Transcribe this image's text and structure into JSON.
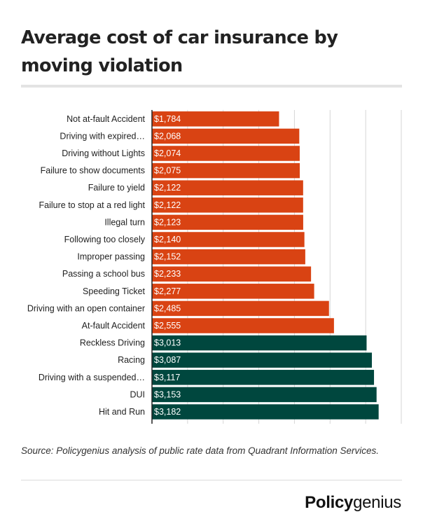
{
  "title": "Average cost of car insurance by moving violation",
  "source_note": "Source: Policygenius analysis of public rate data from Quadrant Information Services.",
  "brand": {
    "part1": "Policy",
    "part2": "genius"
  },
  "colors": {
    "orange": "#d94313",
    "teal": "#00473e",
    "text": "#222222",
    "grid": "#d6d6d6",
    "axis": "#222222"
  },
  "chart_data": {
    "type": "bar",
    "orientation": "horizontal",
    "title": "Average cost of car insurance by moving violation",
    "xlabel": "",
    "ylabel": "",
    "xlim": [
      0,
      3500
    ],
    "grid": true,
    "value_prefix": "$",
    "categories": [
      "Not at-fault Accident",
      "Driving with expired…",
      "Driving without Lights",
      "Failure to show documents",
      "Failure to yield",
      "Failure to stop at a red light",
      "Illegal turn",
      "Following too closely",
      "Improper passing",
      "Passing a school bus",
      "Speeding Ticket",
      "Driving with an open container",
      "At-fault Accident",
      "Reckless Driving",
      "Racing",
      "Driving with a suspended…",
      "DUI",
      "Hit and Run"
    ],
    "values": [
      1784,
      2068,
      2074,
      2075,
      2122,
      2122,
      2123,
      2140,
      2152,
      2233,
      2277,
      2485,
      2555,
      3013,
      3087,
      3117,
      3153,
      3182
    ],
    "labels": [
      "$1,784",
      "$2,068",
      "$2,074",
      "$2,075",
      "$2,122",
      "$2,122",
      "$2,123",
      "$2,140",
      "$2,152",
      "$2,233",
      "$2,277",
      "$2,485",
      "$2,555",
      "$3,013",
      "$3,087",
      "$3,117",
      "$3,153",
      "$3,182"
    ],
    "bar_colors": [
      "orange",
      "orange",
      "orange",
      "orange",
      "orange",
      "orange",
      "orange",
      "orange",
      "orange",
      "orange",
      "orange",
      "orange",
      "orange",
      "teal",
      "teal",
      "teal",
      "teal",
      "teal"
    ]
  }
}
